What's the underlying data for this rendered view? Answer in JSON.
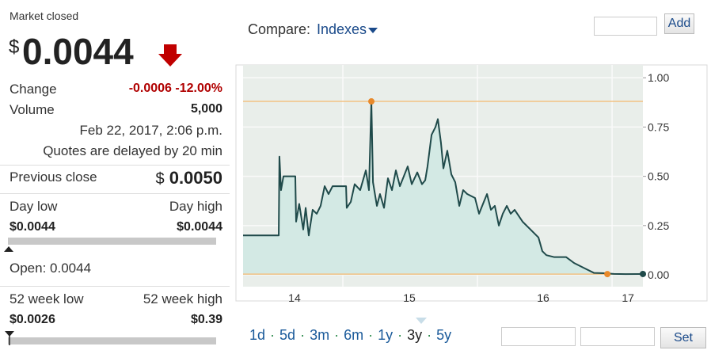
{
  "quote": {
    "status": "Market closed",
    "currency": "$",
    "price": "0.0044",
    "change_label": "Change",
    "change": "-0.0006",
    "change_pct": "-12.00%",
    "volume_label": "Volume",
    "volume": "5,000",
    "timestamp": "Feb 22, 2017, 2:06 p.m.",
    "delay_note": "Quotes are delayed by 20 min",
    "prev_close_label": "Previous close",
    "prev_close_currency": "$",
    "prev_close": "0.0050",
    "day_low_label": "Day low",
    "day_high_label": "Day high",
    "day_low": "$0.0044",
    "day_high": "$0.0044",
    "open": "Open: 0.0044",
    "week52_low_label": "52 week low",
    "week52_high_label": "52 week high",
    "week52_low": "$0.0026",
    "week52_high": "$0.39"
  },
  "compare": {
    "label": "Compare:",
    "dropdown": "Indexes",
    "button": "Add"
  },
  "ranges": [
    "1d",
    "5d",
    "3m",
    "6m",
    "1y",
    "3y",
    "5y"
  ],
  "range_separator": "·",
  "selected_range": 5,
  "set_button": "Set",
  "chart_data": {
    "type": "line",
    "x": [
      2014.259,
      2014.524,
      2014.529,
      2014.541,
      2014.559,
      2014.647,
      2014.653,
      2014.676,
      2014.706,
      2014.724,
      2014.747,
      2014.776,
      2014.806,
      2014.835,
      2014.865,
      2014.894,
      2014.924,
      2015.024,
      2015.029,
      2015.059,
      2015.088,
      2015.129,
      2015.171,
      2015.194,
      2015.212,
      2015.224,
      2015.253,
      2015.276,
      2015.306,
      2015.335,
      2015.365,
      2015.394,
      2015.424,
      2015.453,
      2015.482,
      2015.512,
      2015.553,
      2015.588,
      2015.612,
      2015.629,
      2015.659,
      2015.688,
      2015.706,
      2015.729,
      2015.747,
      2015.776,
      2015.806,
      2015.835,
      2015.865,
      2015.894,
      2015.924,
      2015.982,
      2016.012,
      2016.041,
      2016.071,
      2016.1,
      2016.129,
      2016.159,
      2016.188,
      2016.218,
      2016.247,
      2016.276,
      2016.335,
      2016.394,
      2016.453,
      2016.482,
      2016.512,
      2016.571,
      2016.659,
      2016.718,
      2016.806,
      2016.865,
      2016.953,
      2017.012,
      2017.1,
      2017.229
    ],
    "values": [
      0.2,
      0.2,
      0.6,
      0.43,
      0.5,
      0.5,
      0.27,
      0.36,
      0.23,
      0.34,
      0.2,
      0.33,
      0.31,
      0.35,
      0.45,
      0.41,
      0.45,
      0.45,
      0.34,
      0.37,
      0.46,
      0.43,
      0.53,
      0.43,
      0.88,
      0.47,
      0.35,
      0.41,
      0.34,
      0.49,
      0.43,
      0.53,
      0.45,
      0.5,
      0.55,
      0.46,
      0.52,
      0.46,
      0.48,
      0.55,
      0.71,
      0.75,
      0.79,
      0.67,
      0.54,
      0.63,
      0.51,
      0.47,
      0.35,
      0.43,
      0.41,
      0.39,
      0.31,
      0.36,
      0.41,
      0.33,
      0.35,
      0.25,
      0.31,
      0.35,
      0.31,
      0.33,
      0.27,
      0.23,
      0.19,
      0.12,
      0.1,
      0.09,
      0.09,
      0.06,
      0.03,
      0.01,
      0.008,
      0.005,
      0.004,
      0.0044
    ],
    "xlim": [
      2014.259,
      2017.229
    ],
    "ylim": [
      -0.06,
      1.065
    ],
    "xticks": [
      {
        "value": 2014.641,
        "label": "14"
      },
      {
        "value": 2015.494,
        "label": "15"
      },
      {
        "value": 2016.488,
        "label": "16"
      },
      {
        "value": 2017.118,
        "label": "17"
      }
    ],
    "x_gridlines": [
      2015,
      2016,
      2017
    ],
    "yticks": [
      {
        "value": 1,
        "label": "1.00"
      },
      {
        "value": 0.75,
        "label": "0.75"
      },
      {
        "value": 0.5,
        "label": "0.50"
      },
      {
        "value": 0.25,
        "label": "0.25"
      },
      {
        "value": 0,
        "label": "0.00"
      }
    ],
    "grid": true,
    "color": "#1f4a4a",
    "fill_color": "#d3e9e4",
    "reference_lines": [
      {
        "y": 0.88,
        "color": "#f3c283"
      },
      {
        "y": 0.004,
        "color": "#f3c283"
      }
    ],
    "markers": [
      {
        "x": 2015.212,
        "y": 0.88,
        "color": "#e8892a"
      },
      {
        "x": 2016.965,
        "y": 0.004,
        "color": "#e8892a"
      },
      {
        "x": 2017.229,
        "y": 0.0044,
        "color": "#1f4a4a"
      }
    ]
  }
}
